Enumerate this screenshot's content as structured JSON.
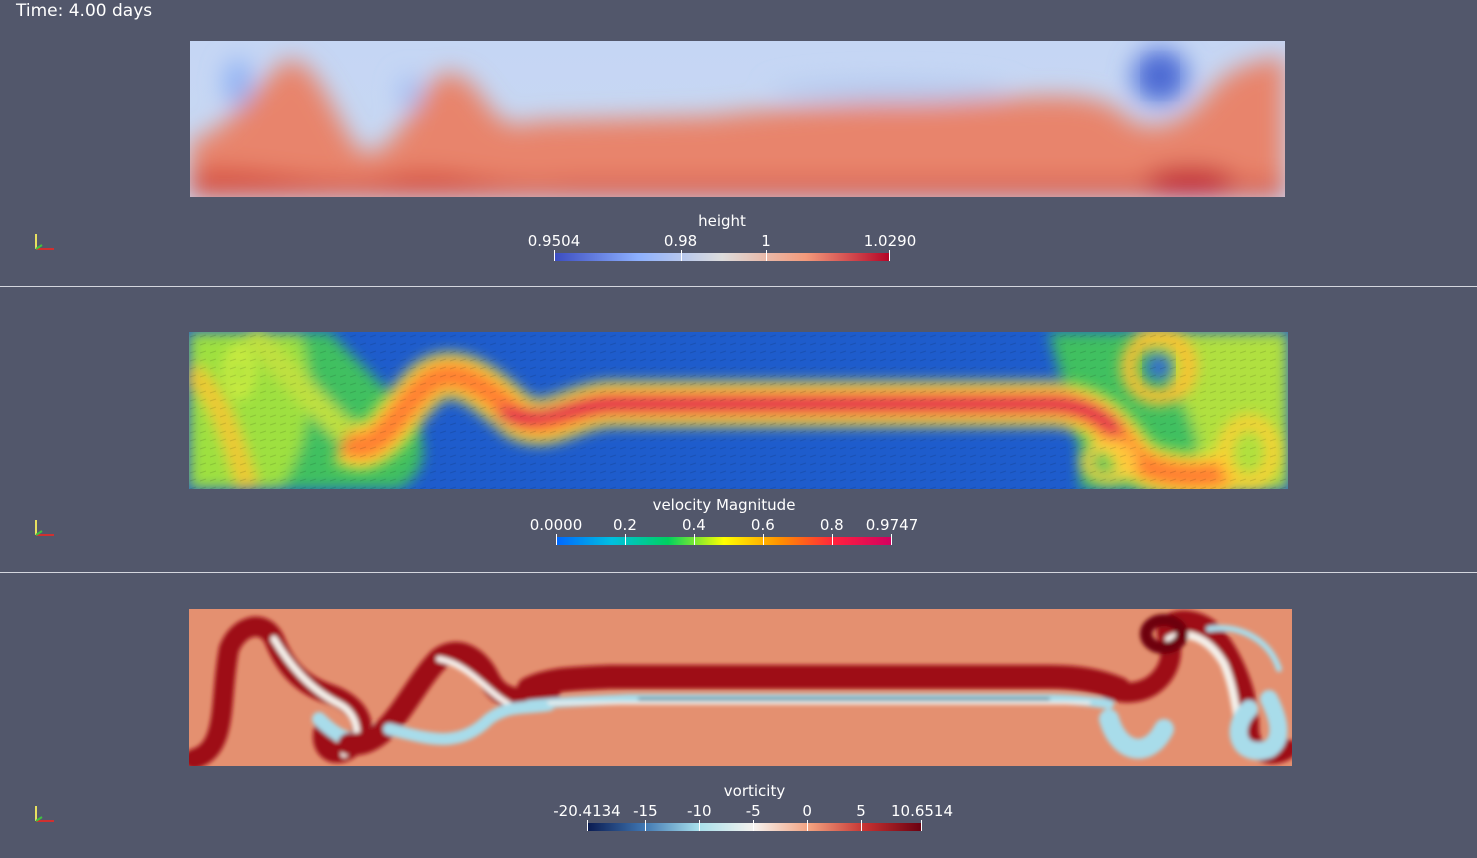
{
  "time_annotation": "Time: 4.00 days",
  "panels": [
    {
      "field": "height",
      "colorbar": {
        "title": "height",
        "min": 0.9504,
        "max": 1.029,
        "colors": [
          "#3b4cc0",
          "#8db0fe",
          "#dddcdc",
          "#f49a7b",
          "#b40426"
        ],
        "ticks": [
          {
            "label": "0.9504",
            "value": 0.9504
          },
          {
            "label": "0.98",
            "value": 0.98
          },
          {
            "label": "1",
            "value": 1.0
          },
          {
            "label": "1.0290",
            "value": 1.029
          }
        ]
      }
    },
    {
      "field": "velocity Magnitude",
      "colorbar": {
        "title": "velocity Magnitude",
        "min": 0.0,
        "max": 0.9747,
        "colors": [
          "#0066ff",
          "#00c0e0",
          "#00d060",
          "#ffff00",
          "#ff9000",
          "#ff2040",
          "#d00060"
        ],
        "ticks": [
          {
            "label": "0.0000",
            "value": 0.0
          },
          {
            "label": "0.2",
            "value": 0.2
          },
          {
            "label": "0.4",
            "value": 0.4
          },
          {
            "label": "0.6",
            "value": 0.6
          },
          {
            "label": "0.8",
            "value": 0.8
          },
          {
            "label": "0.9747",
            "value": 0.9747
          }
        ]
      }
    },
    {
      "field": "vorticity",
      "colorbar": {
        "title": "vorticity",
        "min": -20.4134,
        "max": 10.6514,
        "colors": [
          "#0a1a50",
          "#3e74b0",
          "#a8e0ec",
          "#f6f2ee",
          "#f2a07e",
          "#c43030",
          "#6a0010"
        ],
        "ticks": [
          {
            "label": "-20.4134",
            "value": -20.4134
          },
          {
            "label": "-15",
            "value": -15
          },
          {
            "label": "-10",
            "value": -10
          },
          {
            "label": "-5",
            "value": -5
          },
          {
            "label": "0",
            "value": 0
          },
          {
            "label": "5",
            "value": 5
          },
          {
            "label": "10.6514",
            "value": 10.6514
          }
        ]
      }
    }
  ]
}
